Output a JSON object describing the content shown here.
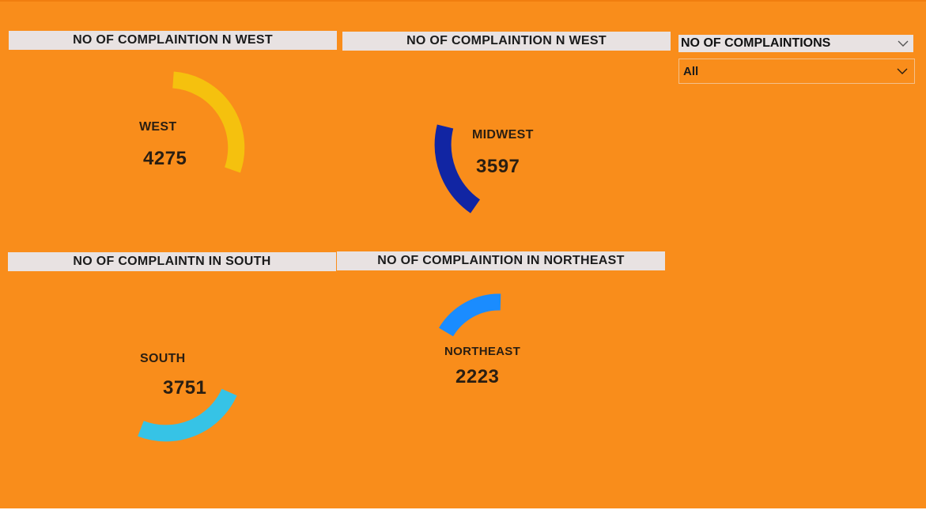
{
  "visuals": [
    {
      "title": "NO OF COMPLAINTION N WEST",
      "region": "WEST",
      "value": "4275"
    },
    {
      "title": "NO OF COMPLAINTION N WEST",
      "region": "MIDWEST",
      "value": "3597"
    },
    {
      "title": "NO OF COMPLAINTN IN SOUTH",
      "region": "SOUTH",
      "value": "3751"
    },
    {
      "title": "NO OF COMPLAINTION IN NORTHEAST",
      "region": "NORTHEAST",
      "value": "2223"
    }
  ],
  "slicer": {
    "header": "NO OF COMPLAINTIONS",
    "selected": "All"
  },
  "colors": {
    "background": "#f98d1b",
    "west": "#f5c10e",
    "midwest": "#1125a3",
    "south": "#36c3e6",
    "northeast": "#1a8cff"
  }
}
